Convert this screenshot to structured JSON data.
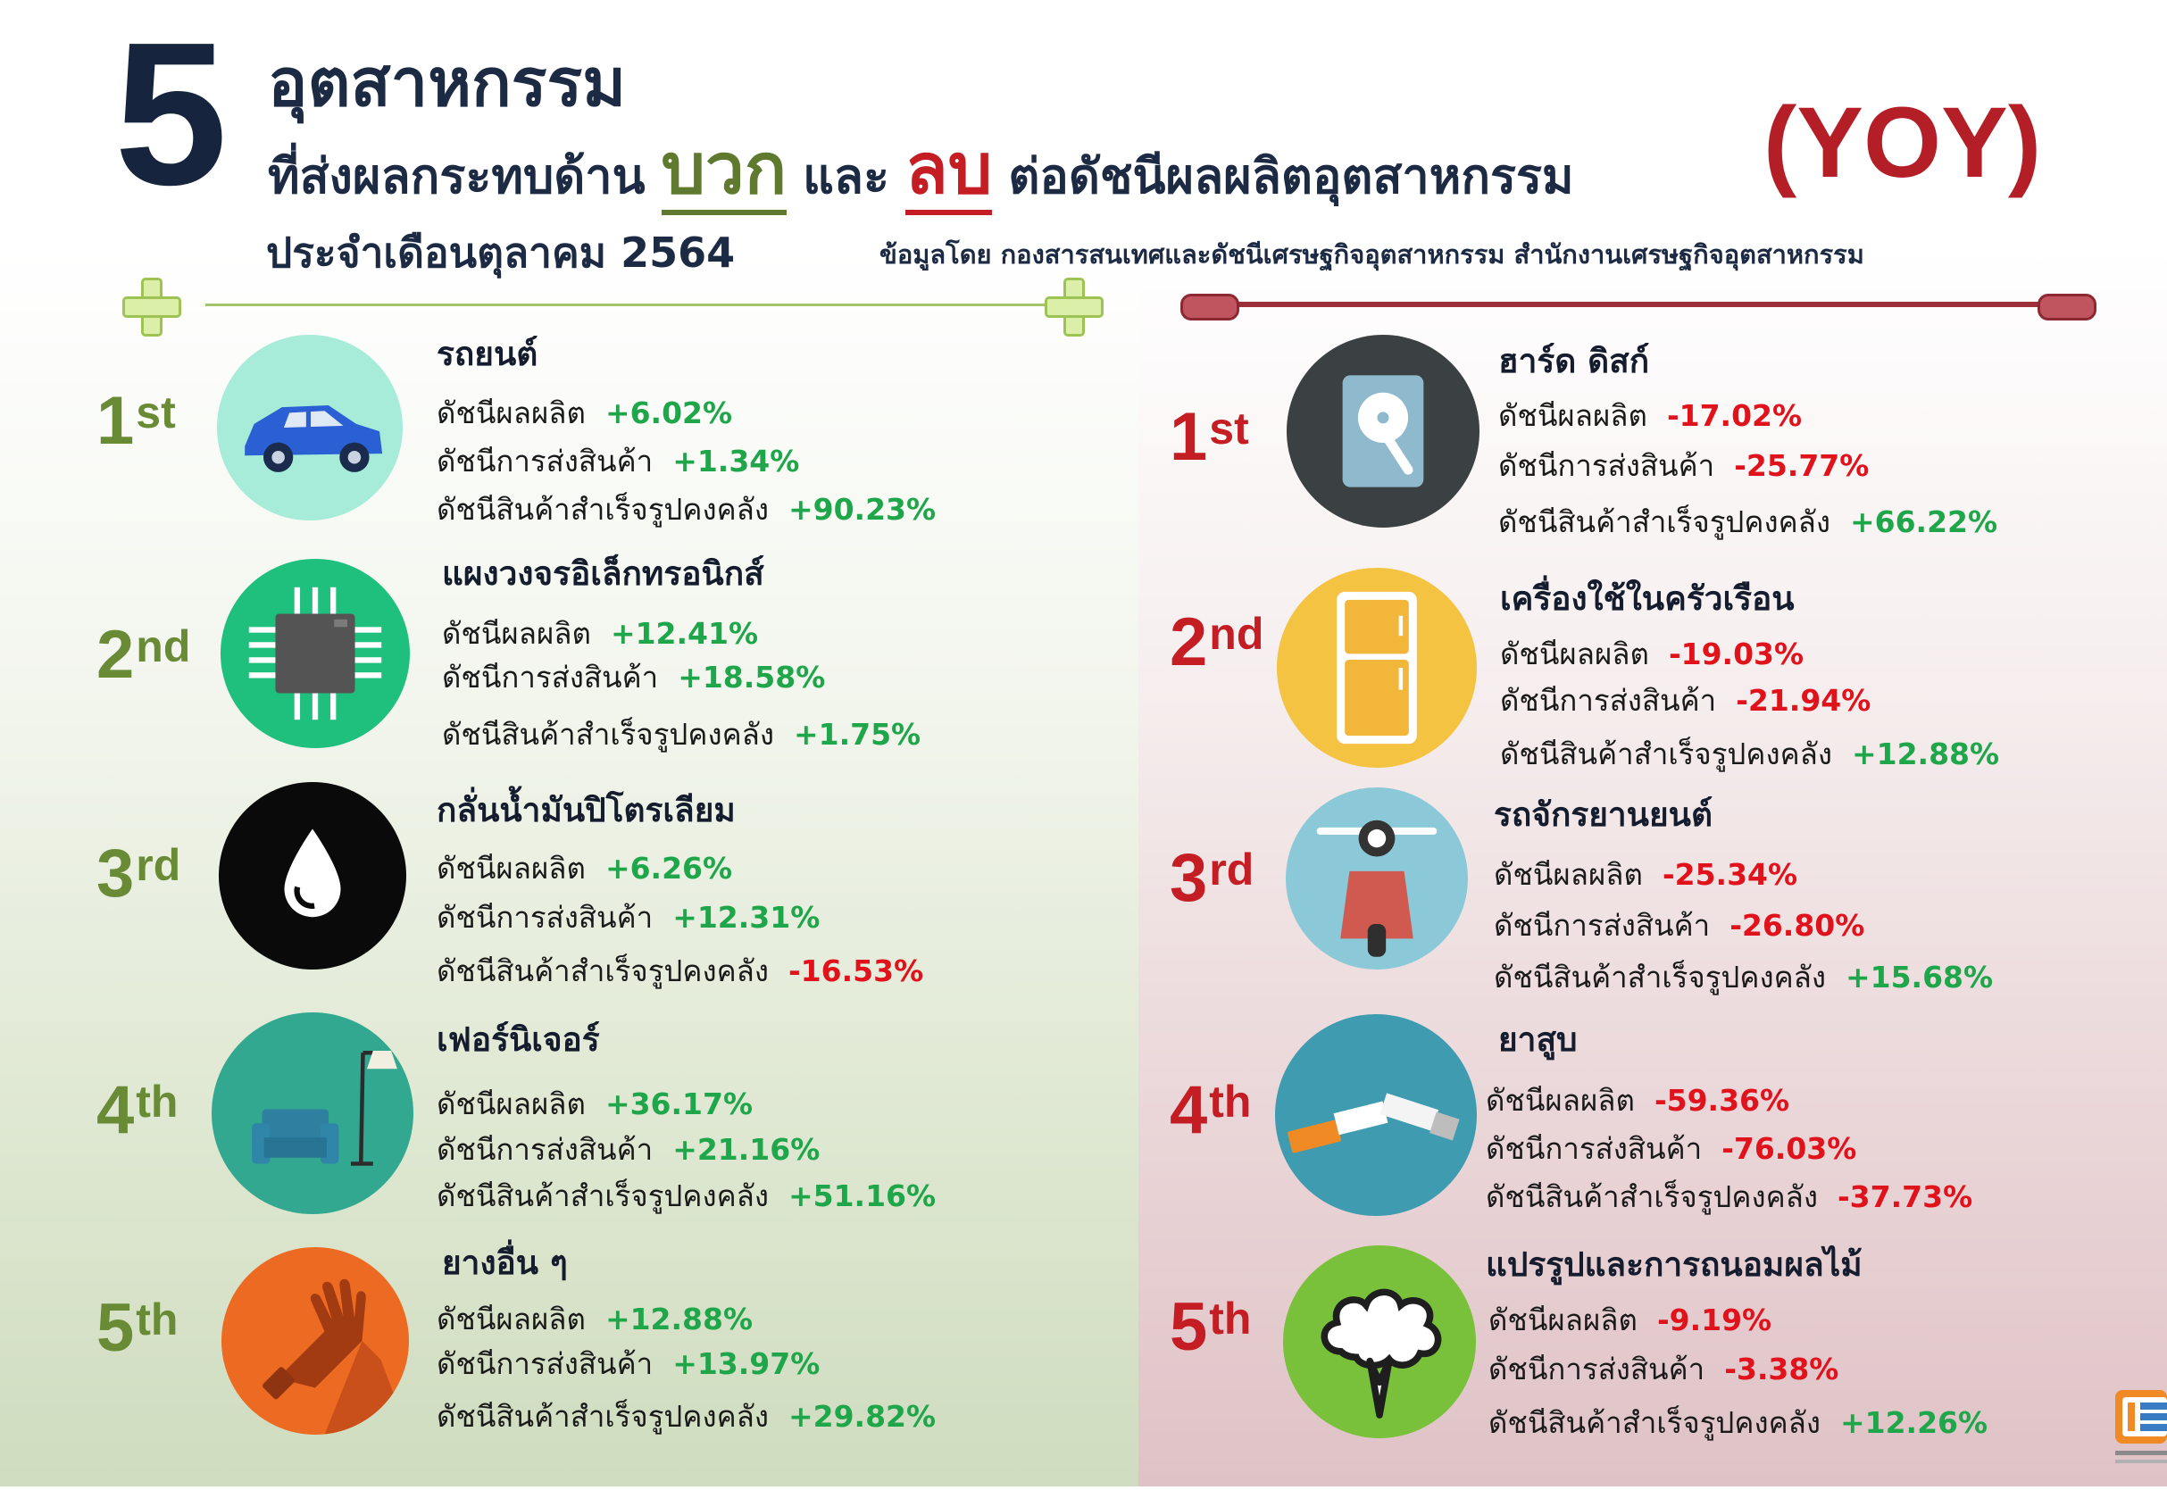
{
  "header": {
    "number": "5",
    "title_line1": "อุตสาหกรรม",
    "title_line2_pre": "ที่ส่งผลกระทบด้าน",
    "positive_word": "บวก",
    "and_word": "และ",
    "negative_word": "ลบ",
    "title_line2_post": "ต่อดัชนีผลผลิตอุตสาหกรรม",
    "yoy": "(YOY)",
    "period": "ประจำเดือนตุลาคม 2564",
    "source": "ข้อมูลโดย กองสารสนเทศและดัชนีเศรษฐกิจอุตสาหกรรม สำนักงานเศรษฐกิจอุตสาหกรรม"
  },
  "labels": {
    "production": "ดัชนีผลผลิต",
    "shipment": "ดัชนีการส่งสินค้า",
    "inventory": "ดัชนีสินค้าสำเร็จรูปคงคลัง"
  },
  "colors": {
    "positive_accent": "#6a8b35",
    "negative_accent": "#c41d24",
    "value_positive": "#1fa64a",
    "value_negative": "#e0121b",
    "title_navy": "#1d2a44"
  },
  "positive": [
    {
      "rank": "1",
      "suffix": "st",
      "name": "รถยนต์",
      "icon": "car-icon",
      "production": "+6.02%",
      "shipment": "+1.34%",
      "inventory": "+90.23%"
    },
    {
      "rank": "2",
      "suffix": "nd",
      "name": "แผงวงจรอิเล็กทรอนิกส์",
      "icon": "chip-icon",
      "production": "+12.41%",
      "shipment": "+18.58%",
      "inventory": "+1.75%"
    },
    {
      "rank": "3",
      "suffix": "rd",
      "name": "กลั่นน้ำมันปิโตรเลียม",
      "icon": "oil-drop-icon",
      "production": "+6.26%",
      "shipment": "+12.31%",
      "inventory": "-16.53%"
    },
    {
      "rank": "4",
      "suffix": "th",
      "name": "เฟอร์นิเจอร์",
      "icon": "armchair-lamp-icon",
      "production": "+36.17%",
      "shipment": "+21.16%",
      "inventory": "+51.16%"
    },
    {
      "rank": "5",
      "suffix": "th",
      "name": "ยางอื่น ๆ",
      "icon": "rubber-glove-icon",
      "production": "+12.88%",
      "shipment": "+13.97%",
      "inventory": "+29.82%"
    }
  ],
  "negative": [
    {
      "rank": "1",
      "suffix": "st",
      "name": "ฮาร์ด ดิสก์",
      "icon": "hard-disk-icon",
      "production": "-17.02%",
      "shipment": "-25.77%",
      "inventory": "+66.22%"
    },
    {
      "rank": "2",
      "suffix": "nd",
      "name": "เครื่องใช้ในครัวเรือน",
      "icon": "refrigerator-icon",
      "production": "-19.03%",
      "shipment": "-21.94%",
      "inventory": "+12.88%"
    },
    {
      "rank": "3",
      "suffix": "rd",
      "name": "รถจักรยานยนต์",
      "icon": "scooter-icon",
      "production": "-25.34%",
      "shipment": "-26.80%",
      "inventory": "+15.68%"
    },
    {
      "rank": "4",
      "suffix": "th",
      "name": "ยาสูบ",
      "icon": "cigarette-icon",
      "production": "-59.36%",
      "shipment": "-76.03%",
      "inventory": "-37.73%"
    },
    {
      "rank": "5",
      "suffix": "th",
      "name": "แปรรูปและการถนอมผลไม้",
      "icon": "tree-icon",
      "production": "-9.19%",
      "shipment": "-3.38%",
      "inventory": "+12.26%"
    }
  ]
}
